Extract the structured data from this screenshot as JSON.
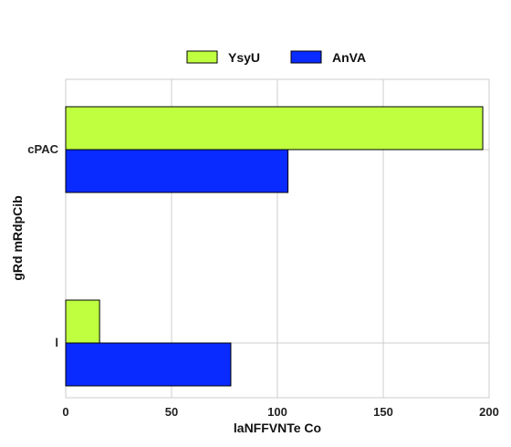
{
  "chart_data": {
    "type": "bar",
    "orientation": "horizontal",
    "categories": [
      "cPAC",
      "l"
    ],
    "series": [
      {
        "name": "YsyU",
        "color": "#bfff40",
        "values": [
          197,
          16
        ]
      },
      {
        "name": "AnVA",
        "color": "#0a2bff",
        "values": [
          105,
          78
        ]
      }
    ],
    "xlabel": "laNFFVNTe Co",
    "ylabel": "gRd mRdpCib",
    "xlim": [
      0,
      200
    ],
    "xticks": [
      0,
      50,
      100,
      150,
      200
    ],
    "grid": true,
    "legend_position": "top-center"
  }
}
